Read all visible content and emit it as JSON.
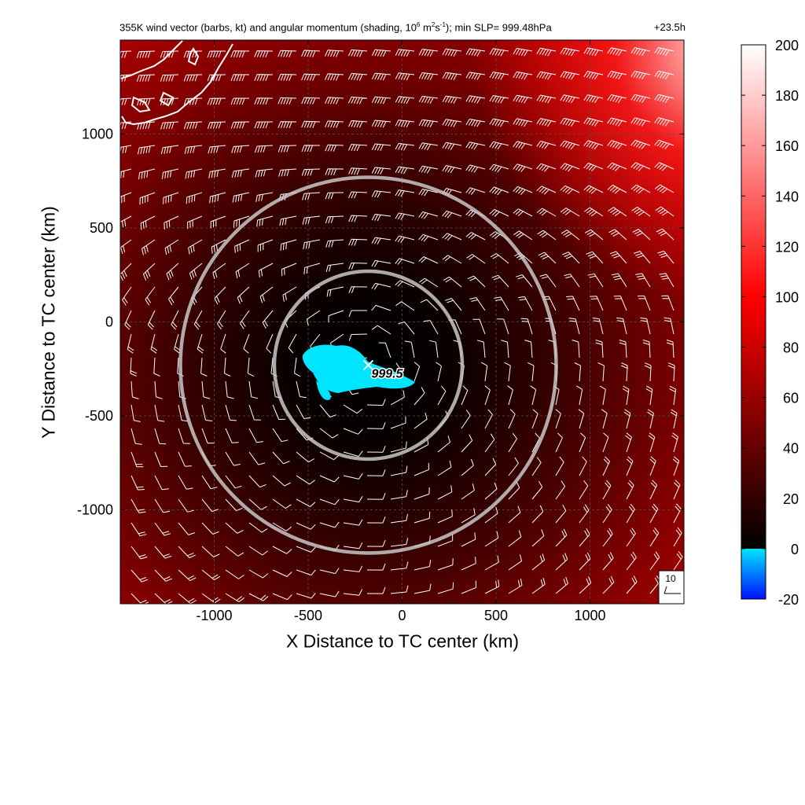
{
  "chart_data": {
    "type": "heatmap",
    "title_main": "355K wind vector (barbs, kt) and angular momentum (shading, 10",
    "title_exp1": "6",
    "title_mid": " m",
    "title_exp2": "2",
    "title_mid2": "s",
    "title_exp3": "-1",
    "title_end": "); min SLP= 999.48hPa",
    "time_label": "+23.5h",
    "xlabel": "X Distance to TC center (km)",
    "ylabel": "Y Distance to TC center (km)",
    "xlim": [
      -1500,
      1500
    ],
    "ylim": [
      -1500,
      1500
    ],
    "x_ticks": [
      -1000,
      -500,
      0,
      500,
      1000
    ],
    "y_ticks": [
      -1000,
      -500,
      0,
      500,
      1000
    ],
    "grid": true,
    "colorbar": {
      "min": -20,
      "max": 200,
      "ticks": [
        -20,
        0,
        20,
        40,
        60,
        80,
        100,
        120,
        140,
        160,
        180,
        200
      ],
      "stops": [
        {
          "value": -20,
          "color": "#0010ff"
        },
        {
          "value": 0,
          "color": "#00e5ff"
        },
        {
          "value": 0.01,
          "color": "#000000"
        },
        {
          "value": 100,
          "color": "#ff0000"
        },
        {
          "value": 200,
          "color": "#ffffff"
        }
      ]
    },
    "tc_center": {
      "x": -180,
      "y": -230,
      "label": "999.5"
    },
    "range_rings_km": [
      500,
      1000
    ],
    "reference_barb_label": "10",
    "min_slp_hpa": 999.48
  }
}
